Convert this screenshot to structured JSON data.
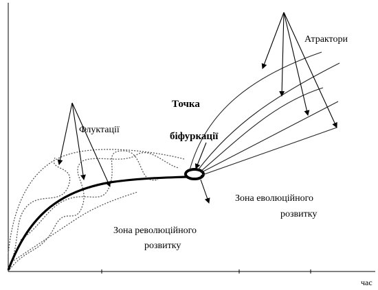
{
  "labels": {
    "attractors": "Атрактори",
    "point_line1": "Точка",
    "point_line2": "біфуркації",
    "fluctuations": "Флуктації",
    "evolution_line1": "Зона еволюційного",
    "evolution_line2": "розвитку",
    "revolution_line1": "Зона революційного",
    "revolution_line2": "розвитку",
    "x_axis": "час"
  }
}
